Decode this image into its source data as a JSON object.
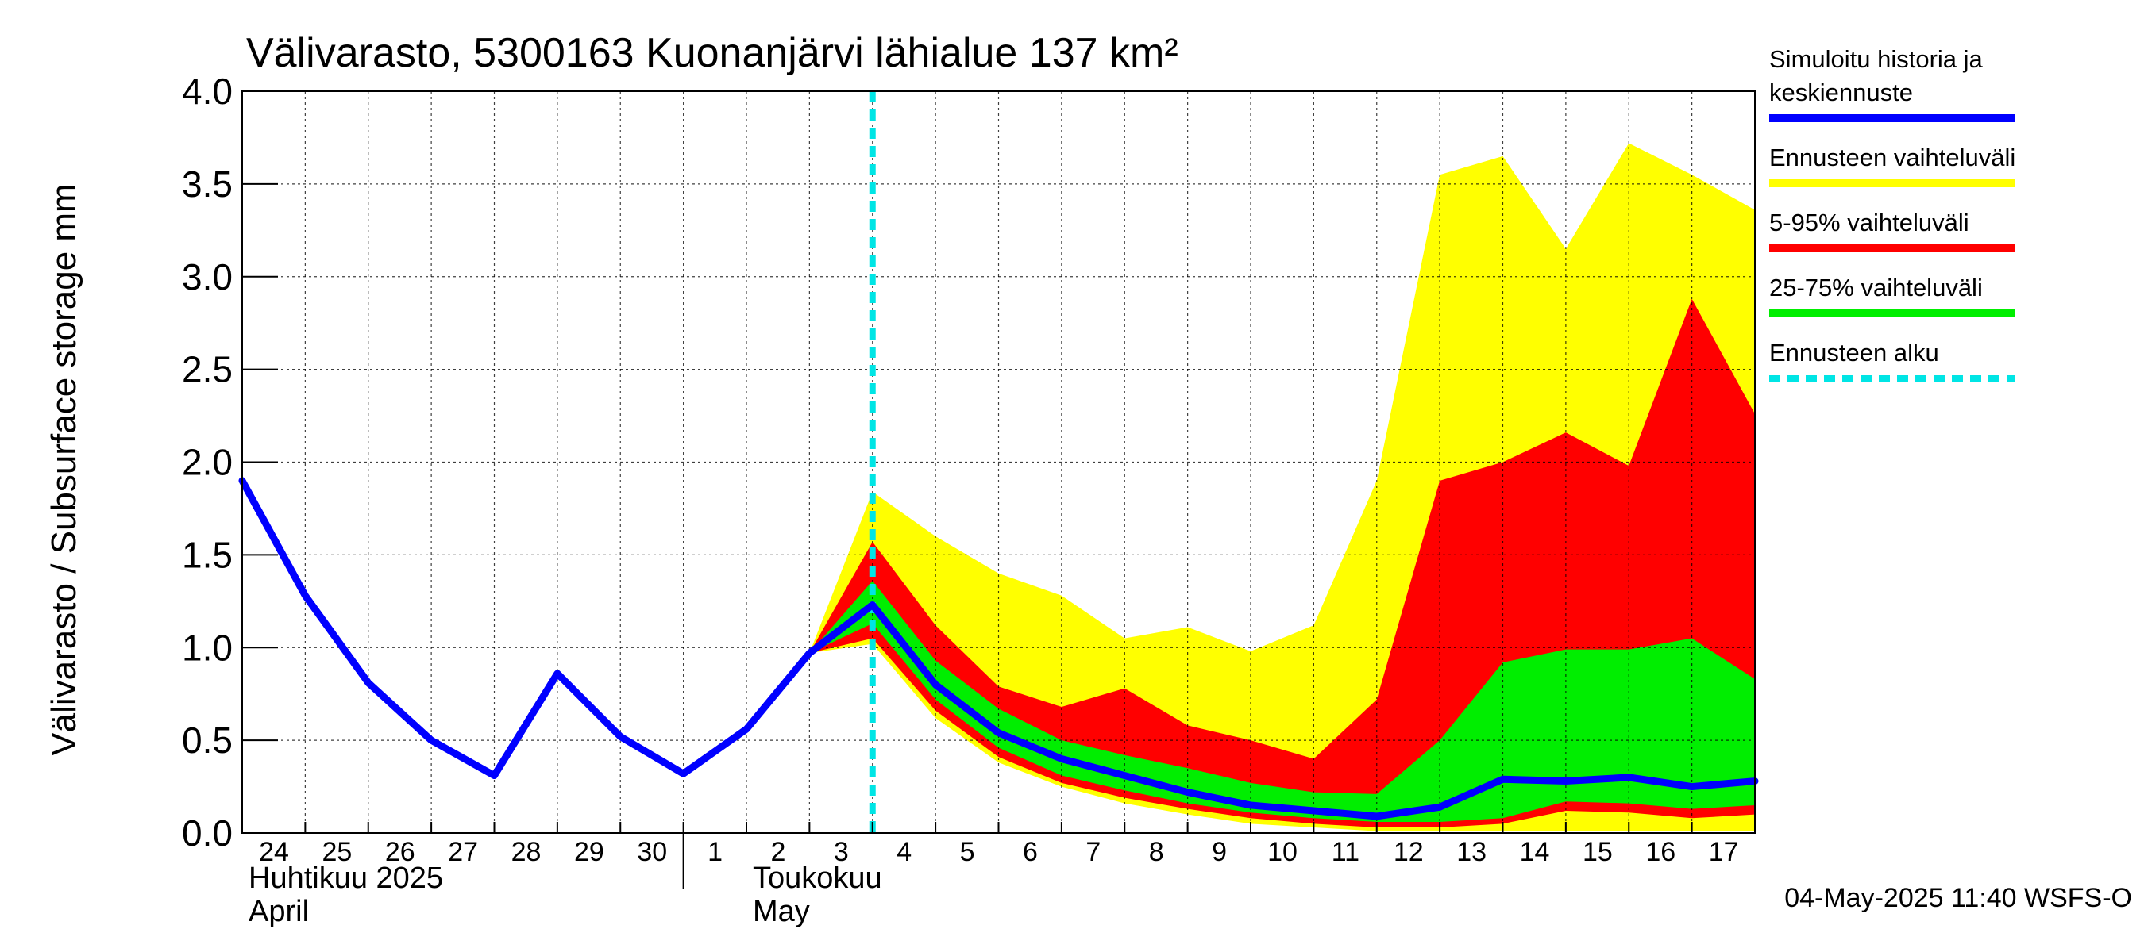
{
  "chart_data": {
    "type": "area",
    "title": "Välivarasto, 5300163 Kuonanjärvi lähialue 137 km²",
    "ylabel": "Välivarasto / Subsurface storage  mm",
    "ylim": [
      0,
      4.0
    ],
    "yticks": [
      "0.0",
      "0.5",
      "1.0",
      "1.5",
      "2.0",
      "2.5",
      "3.0",
      "3.5",
      "4.0"
    ],
    "xlim": [
      0,
      24
    ],
    "x_tick_labels": [
      "24",
      "25",
      "26",
      "27",
      "28",
      "29",
      "30",
      "1",
      "2",
      "3",
      "4",
      "5",
      "6",
      "7",
      "8",
      "9",
      "10",
      "11",
      "12",
      "13",
      "14",
      "15",
      "16",
      "17"
    ],
    "month_labels": [
      {
        "line1": "Huhtikuu  2025",
        "line2": "April"
      },
      {
        "line1": "Toukokuu",
        "line2": "May"
      }
    ],
    "grid": true,
    "forecast_start_x": 10,
    "footer": "04-May-2025 11:40 WSFS-O",
    "legend": [
      {
        "label_lines": [
          "Simuloitu historia ja",
          "keskiennuste"
        ],
        "color": "#0000ff",
        "style": "solid"
      },
      {
        "label_lines": [
          "Ennusteen vaihteluväli"
        ],
        "color": "#ffff00",
        "style": "solid"
      },
      {
        "label_lines": [
          "5-95% vaihteluväli"
        ],
        "color": "#ff0000",
        "style": "solid"
      },
      {
        "label_lines": [
          "25-75% vaihteluväli"
        ],
        "color": "#00ee00",
        "style": "solid"
      },
      {
        "label_lines": [
          "Ennusteen alku"
        ],
        "color": "#00e5e5",
        "style": "dashed"
      }
    ],
    "bands": [
      {
        "name": "Ennusteen vaihteluväli",
        "color": "#ffff00",
        "x": [
          9,
          10,
          11,
          12,
          13,
          14,
          15,
          16,
          17,
          18,
          19,
          20,
          21,
          22,
          23,
          24
        ],
        "lower": [
          0.97,
          1.02,
          0.62,
          0.38,
          0.25,
          0.16,
          0.1,
          0.05,
          0.03,
          0.01,
          0.01,
          0.01,
          0.01,
          0.01,
          0.01,
          0.01
        ],
        "upper": [
          0.97,
          1.84,
          1.6,
          1.4,
          1.28,
          1.05,
          1.11,
          0.98,
          1.12,
          1.9,
          3.55,
          3.65,
          3.15,
          3.72,
          3.55,
          3.36
        ]
      },
      {
        "name": "5-95% vaihteluväli",
        "color": "#ff0000",
        "x": [
          9,
          10,
          11,
          12,
          13,
          14,
          15,
          16,
          17,
          18,
          19,
          20,
          21,
          22,
          23,
          24
        ],
        "lower": [
          0.97,
          1.05,
          0.66,
          0.41,
          0.27,
          0.19,
          0.13,
          0.08,
          0.05,
          0.03,
          0.03,
          0.05,
          0.12,
          0.11,
          0.08,
          0.1
        ],
        "upper": [
          0.97,
          1.57,
          1.12,
          0.79,
          0.68,
          0.78,
          0.58,
          0.5,
          0.4,
          0.72,
          1.9,
          2.0,
          2.16,
          1.98,
          2.88,
          2.26
        ]
      },
      {
        "name": "25-75% vaihteluväli",
        "color": "#00ee00",
        "x": [
          9,
          10,
          11,
          12,
          13,
          14,
          15,
          16,
          17,
          18,
          19,
          20,
          21,
          22,
          23,
          24
        ],
        "lower": [
          0.97,
          1.13,
          0.72,
          0.46,
          0.31,
          0.23,
          0.16,
          0.11,
          0.08,
          0.06,
          0.06,
          0.08,
          0.17,
          0.16,
          0.13,
          0.15
        ],
        "upper": [
          0.97,
          1.36,
          0.93,
          0.67,
          0.5,
          0.42,
          0.35,
          0.27,
          0.22,
          0.21,
          0.5,
          0.92,
          0.99,
          0.99,
          1.05,
          0.83
        ]
      }
    ],
    "series": [
      {
        "name": "Simuloitu historia ja keskiennuste",
        "color": "#0000ff",
        "x": [
          0,
          1,
          2,
          3,
          4,
          5,
          6,
          7,
          8,
          9,
          10,
          11,
          12,
          13,
          14,
          15,
          16,
          17,
          18,
          19,
          20,
          21,
          22,
          23,
          24
        ],
        "values": [
          1.9,
          1.28,
          0.81,
          0.5,
          0.31,
          0.86,
          0.52,
          0.32,
          0.56,
          0.97,
          1.23,
          0.8,
          0.54,
          0.4,
          0.31,
          0.22,
          0.15,
          0.12,
          0.09,
          0.14,
          0.29,
          0.28,
          0.3,
          0.25,
          0.28
        ]
      }
    ]
  }
}
